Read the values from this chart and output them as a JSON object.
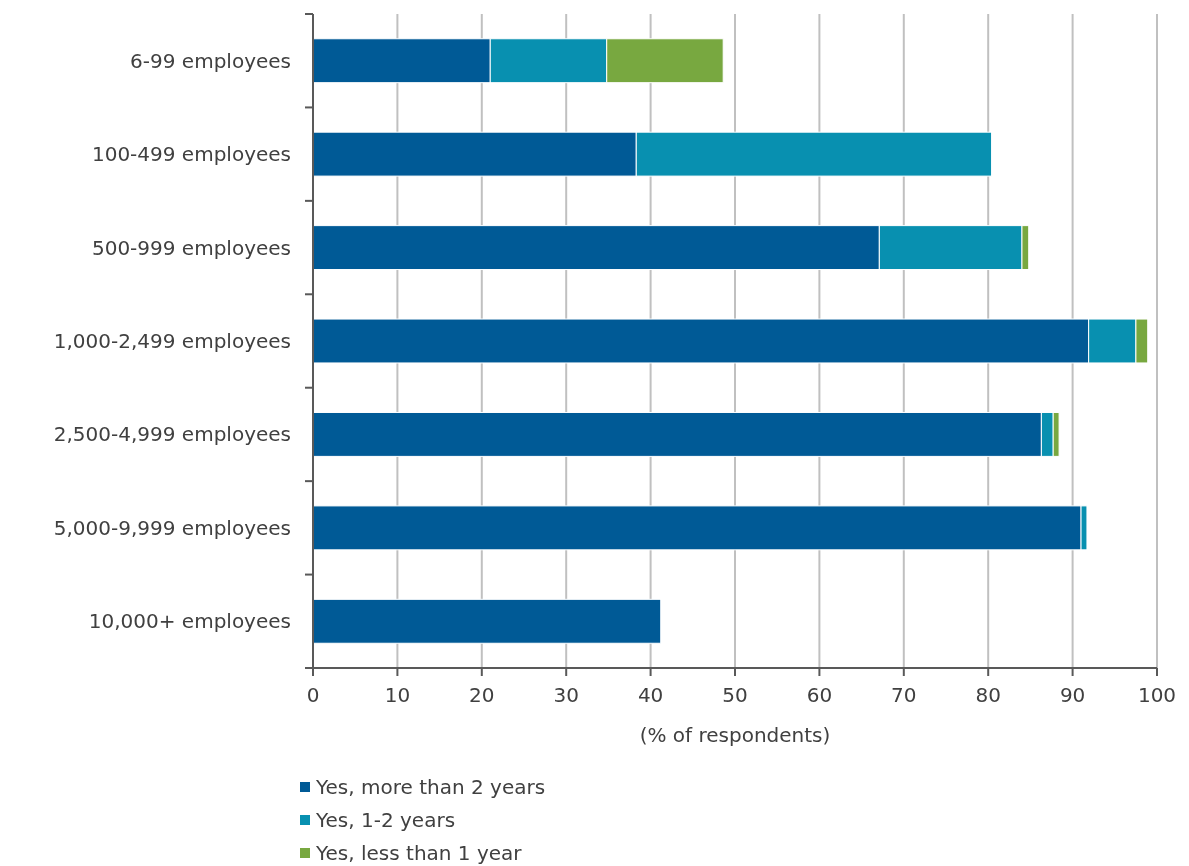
{
  "chart_data": {
    "type": "bar",
    "orientation": "horizontal",
    "stacked": true,
    "xlabel": "(% of respondents)",
    "categories": [
      "6-99 employees",
      "100-499 employees",
      "500-999 employees",
      "1,000-2,499 employees",
      "2,500-4,999 employees",
      "5,000-9,999 employees",
      "10,000+ employees"
    ],
    "series": [
      {
        "name": "Yes, more than 2 years",
        "color": "#005a96",
        "values": [
          21,
          38.3,
          67.1,
          91.9,
          86.3,
          91,
          41.2
        ]
      },
      {
        "name": "Yes, 1-2 years",
        "color": "#0890b0",
        "values": [
          13.8,
          42.1,
          16.9,
          5.6,
          1.4,
          0.7,
          0
        ]
      },
      {
        "name": "Yes, less than 1 year",
        "color": "#78a840",
        "values": [
          13.8,
          0,
          0.8,
          1.4,
          0.7,
          0,
          0
        ]
      }
    ],
    "xlim": [
      0,
      100
    ],
    "xticks": [
      0,
      10,
      20,
      30,
      40,
      50,
      60,
      70,
      80,
      90,
      100
    ],
    "grid": "x",
    "legend": "bottom left"
  }
}
